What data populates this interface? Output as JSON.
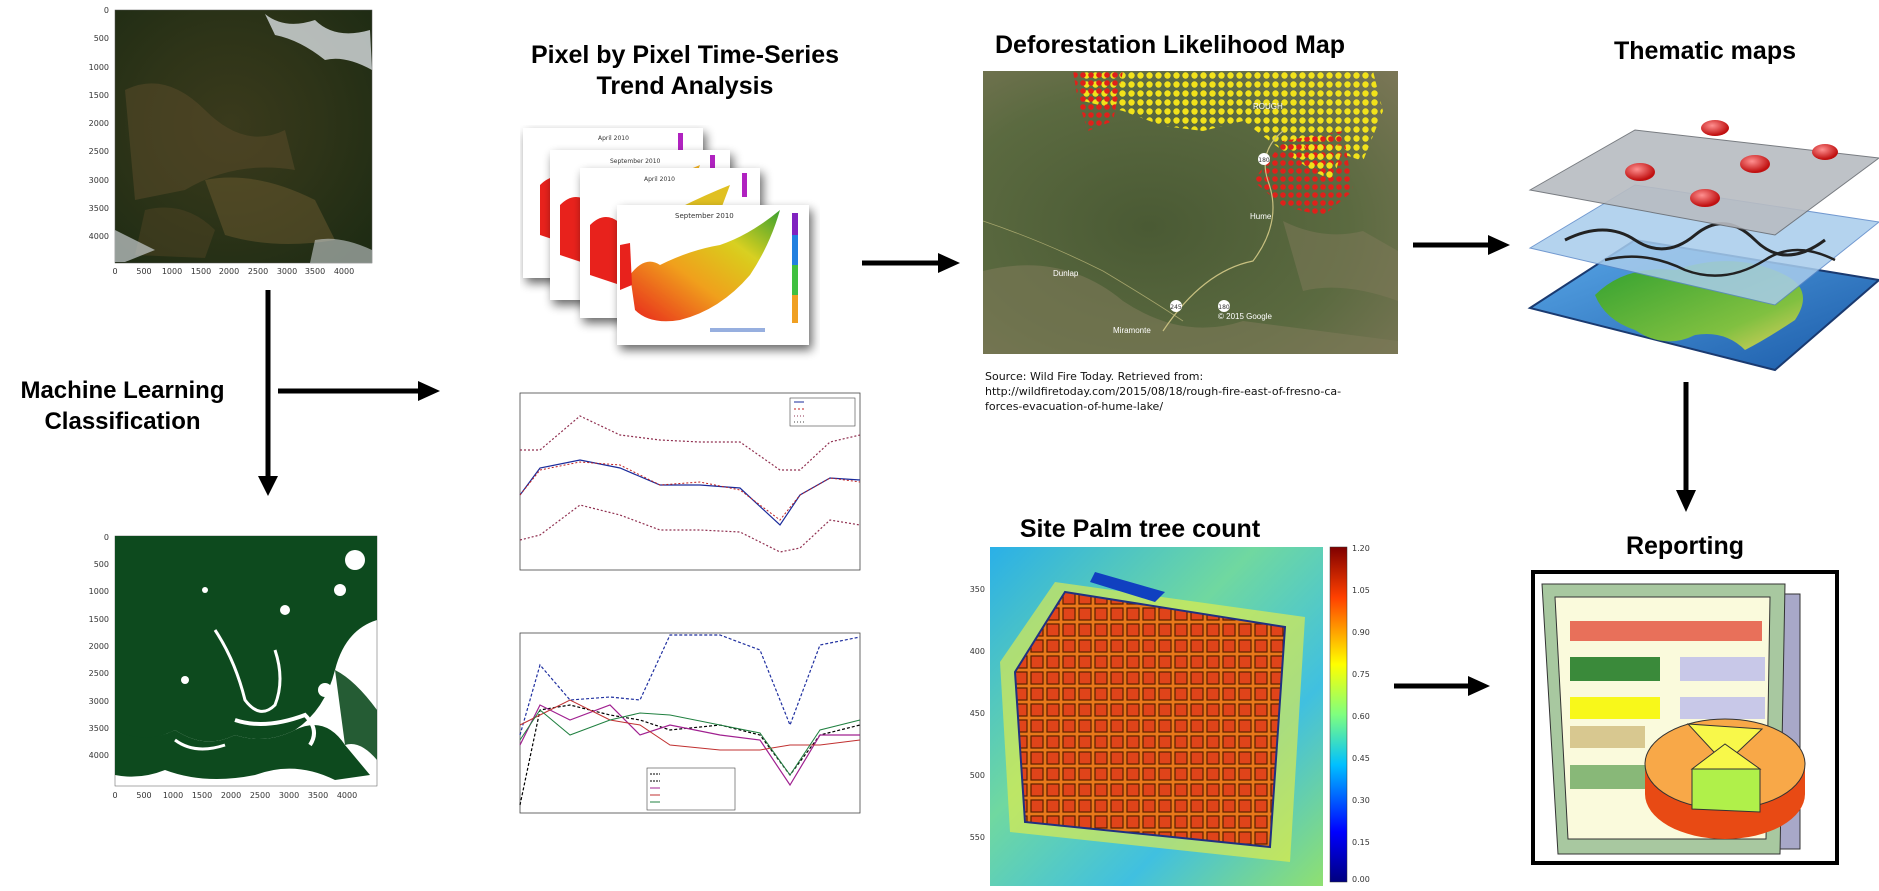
{
  "titles": {
    "ml": [
      "Machine Learning",
      "Classification"
    ],
    "trend": [
      "Pixel by Pixel Time-Series",
      "Trend Analysis"
    ],
    "deforestation": "Deforestation Likelihood Map",
    "thematic": "Thematic maps",
    "palm": "Site Palm tree count",
    "reporting": "Reporting"
  },
  "raster_axes": {
    "y_ticks": [
      "0",
      "500",
      "1000",
      "1500",
      "2000",
      "2500",
      "3000",
      "3500",
      "4000"
    ],
    "x_ticks": [
      "0",
      "500",
      "1000",
      "1500",
      "2000",
      "2500",
      "3000",
      "3500",
      "4000"
    ]
  },
  "source": {
    "line1": "Source: Wild Fire Today. Retrieved from:",
    "line2": "http://wildfiretoday.com/2015/08/18/rough-fire-east-of-fresno-ca-",
    "line3": "forces-evacuation-of-hume-lake/"
  },
  "map_labels": {
    "rough": "ROUGH",
    "hume": "Hume",
    "dunlap": "Dunlap",
    "miramonte": "Miramonte",
    "copyright": "© 2015 Google",
    "road180a": "180",
    "road180b": "180",
    "road245": "245"
  },
  "stack_labels": {
    "back1": "April 2010",
    "back2": "September 2010",
    "back3": "April 2010",
    "front": "September 2010"
  },
  "palm_axes": {
    "y_ticks": [
      "350",
      "400",
      "450",
      "500",
      "550"
    ],
    "colorbar_ticks": [
      "1.20",
      "1.05",
      "0.90",
      "0.75",
      "0.60",
      "0.45",
      "0.30",
      "0.15",
      "0.00"
    ]
  },
  "colors": {
    "forest": "#0d4a1e",
    "arrow": "#000000",
    "fire_red": "#e0201a",
    "fire_yellow": "#f2e21a"
  }
}
